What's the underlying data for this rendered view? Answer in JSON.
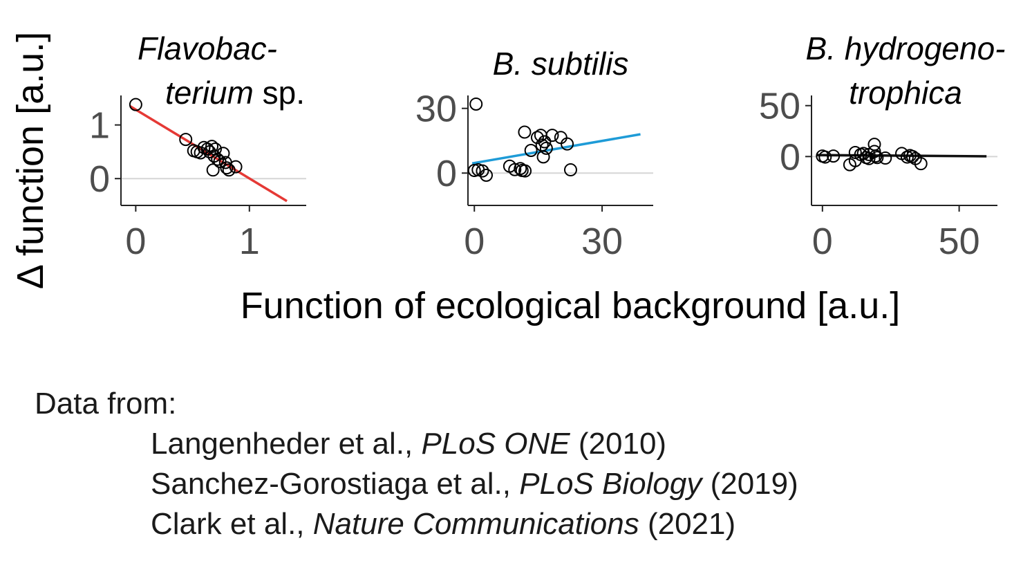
{
  "ylabel": "Δ function [a.u.]",
  "xlabel": "Function of ecological background [a.u.]",
  "chart_data": [
    {
      "type": "scatter",
      "title_lines": [
        "Flavobac-",
        "terium sp."
      ],
      "title_italic": [
        "Flavobac-",
        "terium"
      ],
      "title_plain": " sp.",
      "xticks": [
        "0",
        "1"
      ],
      "yticks": [
        "0",
        "1"
      ],
      "xlim": [
        -0.13,
        1.5
      ],
      "ylim": [
        -0.5,
        1.55
      ],
      "reference_line_y": 0,
      "fit": {
        "color": "#e53935",
        "x": [
          -0.05,
          1.33
        ],
        "y": [
          1.35,
          -0.42
        ]
      },
      "points": [
        {
          "x": 0.0,
          "y": 1.38
        },
        {
          "x": 0.44,
          "y": 0.73
        },
        {
          "x": 0.51,
          "y": 0.52
        },
        {
          "x": 0.54,
          "y": 0.5
        },
        {
          "x": 0.57,
          "y": 0.48
        },
        {
          "x": 0.6,
          "y": 0.58
        },
        {
          "x": 0.63,
          "y": 0.55
        },
        {
          "x": 0.65,
          "y": 0.5
        },
        {
          "x": 0.67,
          "y": 0.6
        },
        {
          "x": 0.69,
          "y": 0.42
        },
        {
          "x": 0.7,
          "y": 0.55
        },
        {
          "x": 0.72,
          "y": 0.36
        },
        {
          "x": 0.74,
          "y": 0.32
        },
        {
          "x": 0.77,
          "y": 0.47
        },
        {
          "x": 0.79,
          "y": 0.3
        },
        {
          "x": 0.8,
          "y": 0.2
        },
        {
          "x": 0.82,
          "y": 0.16
        },
        {
          "x": 0.68,
          "y": 0.16
        },
        {
          "x": 0.88,
          "y": 0.22
        }
      ]
    },
    {
      "type": "scatter",
      "title_lines": [
        "B. subtilis"
      ],
      "xticks": [
        "0",
        "30"
      ],
      "yticks": [
        "0",
        "30"
      ],
      "xlim": [
        -1.5,
        42
      ],
      "ylim": [
        -15,
        36
      ],
      "reference_line_y": 0,
      "fit": {
        "color": "#1e9bd7",
        "x": [
          -0.5,
          39
        ],
        "y": [
          4.5,
          18
        ]
      },
      "points": [
        {
          "x": 0.4,
          "y": 32
        },
        {
          "x": 0,
          "y": 1.2
        },
        {
          "x": 0.9,
          "y": 1.5
        },
        {
          "x": 1.9,
          "y": 1.0
        },
        {
          "x": 2.8,
          "y": -1.0
        },
        {
          "x": 8.3,
          "y": 3.2
        },
        {
          "x": 9.5,
          "y": 1.6
        },
        {
          "x": 10.8,
          "y": 2.1
        },
        {
          "x": 11.2,
          "y": 1.2
        },
        {
          "x": 11.9,
          "y": 1.0
        },
        {
          "x": 11.8,
          "y": 19
        },
        {
          "x": 13.3,
          "y": 10.5
        },
        {
          "x": 14.8,
          "y": 16.5
        },
        {
          "x": 15.6,
          "y": 17.5
        },
        {
          "x": 15.9,
          "y": 13
        },
        {
          "x": 16.2,
          "y": 7.5
        },
        {
          "x": 16.5,
          "y": 14.5
        },
        {
          "x": 16.9,
          "y": 11.5
        },
        {
          "x": 18.3,
          "y": 17.5
        },
        {
          "x": 20.3,
          "y": 16.5
        },
        {
          "x": 21.8,
          "y": 13.5
        },
        {
          "x": 22.6,
          "y": 1.5
        }
      ]
    },
    {
      "type": "scatter",
      "title_lines": [
        "B. hydrogeno-",
        "trophica"
      ],
      "xticks": [
        "0",
        "50"
      ],
      "yticks": [
        "0",
        "50"
      ],
      "xlim": [
        -4,
        64
      ],
      "ylim": [
        -48,
        60
      ],
      "reference_line_y": 0,
      "fit": {
        "color": "#111111",
        "x": [
          -2,
          60
        ],
        "y": [
          1.5,
          0.2
        ]
      },
      "points": [
        {
          "x": 0,
          "y": 0.5
        },
        {
          "x": 1,
          "y": -0.5
        },
        {
          "x": 4,
          "y": 0.5
        },
        {
          "x": 10,
          "y": -8
        },
        {
          "x": 12,
          "y": -4
        },
        {
          "x": 12,
          "y": 4
        },
        {
          "x": 14,
          "y": 2
        },
        {
          "x": 15,
          "y": 3
        },
        {
          "x": 16,
          "y": -1
        },
        {
          "x": 17,
          "y": -2
        },
        {
          "x": 17,
          "y": 2
        },
        {
          "x": 19,
          "y": 12
        },
        {
          "x": 19,
          "y": 5
        },
        {
          "x": 19.5,
          "y": 0.5
        },
        {
          "x": 20,
          "y": -1
        },
        {
          "x": 23,
          "y": -1.5
        },
        {
          "x": 29,
          "y": 3
        },
        {
          "x": 31,
          "y": -0.5
        },
        {
          "x": 32,
          "y": 1
        },
        {
          "x": 33,
          "y": 0
        },
        {
          "x": 34,
          "y": -2
        },
        {
          "x": 36,
          "y": -7
        }
      ]
    }
  ],
  "sources": {
    "heading": "Data from:",
    "refs": [
      {
        "authors": "Langenheder et al., ",
        "journal": "PLoS ONE",
        "year": " (2010)"
      },
      {
        "authors": "Sanchez-Gorostiaga et al., ",
        "journal": "PLoS Biology",
        "year": " (2019)"
      },
      {
        "authors": "Clark et al., ",
        "journal": "Nature Communications",
        "year": " (2021)"
      }
    ]
  }
}
